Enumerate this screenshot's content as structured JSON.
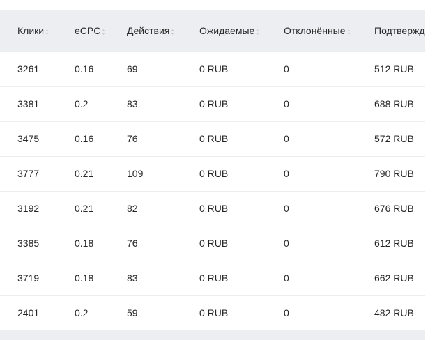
{
  "table": {
    "columns": [
      {
        "label": "Клики"
      },
      {
        "label": "eCPC"
      },
      {
        "label": "Действия"
      },
      {
        "label": "Ожидаемые"
      },
      {
        "label": "Отклонённые"
      },
      {
        "label": "Подтвержд"
      }
    ],
    "rows": [
      [
        "3261",
        "0.16",
        "69",
        "0 RUB",
        "0",
        "512 RUB"
      ],
      [
        "3381",
        "0.2",
        "83",
        "0 RUB",
        "0",
        "688 RUB"
      ],
      [
        "3475",
        "0.16",
        "76",
        "0 RUB",
        "0",
        "572 RUB"
      ],
      [
        "3777",
        "0.21",
        "109",
        "0 RUB",
        "0",
        "790 RUB"
      ],
      [
        "3192",
        "0.21",
        "82",
        "0 RUB",
        "0",
        "676 RUB"
      ],
      [
        "3385",
        "0.18",
        "76",
        "0 RUB",
        "0",
        "612 RUB"
      ],
      [
        "3719",
        "0.18",
        "83",
        "0 RUB",
        "0",
        "662 RUB"
      ],
      [
        "2401",
        "0.2",
        "59",
        "0 RUB",
        "0",
        "482 RUB"
      ]
    ]
  },
  "colors": {
    "header_bg": "#eceef2",
    "row_border": "#ebedf0",
    "text": "#262626"
  },
  "icons": {
    "sort": "sort-icon"
  }
}
